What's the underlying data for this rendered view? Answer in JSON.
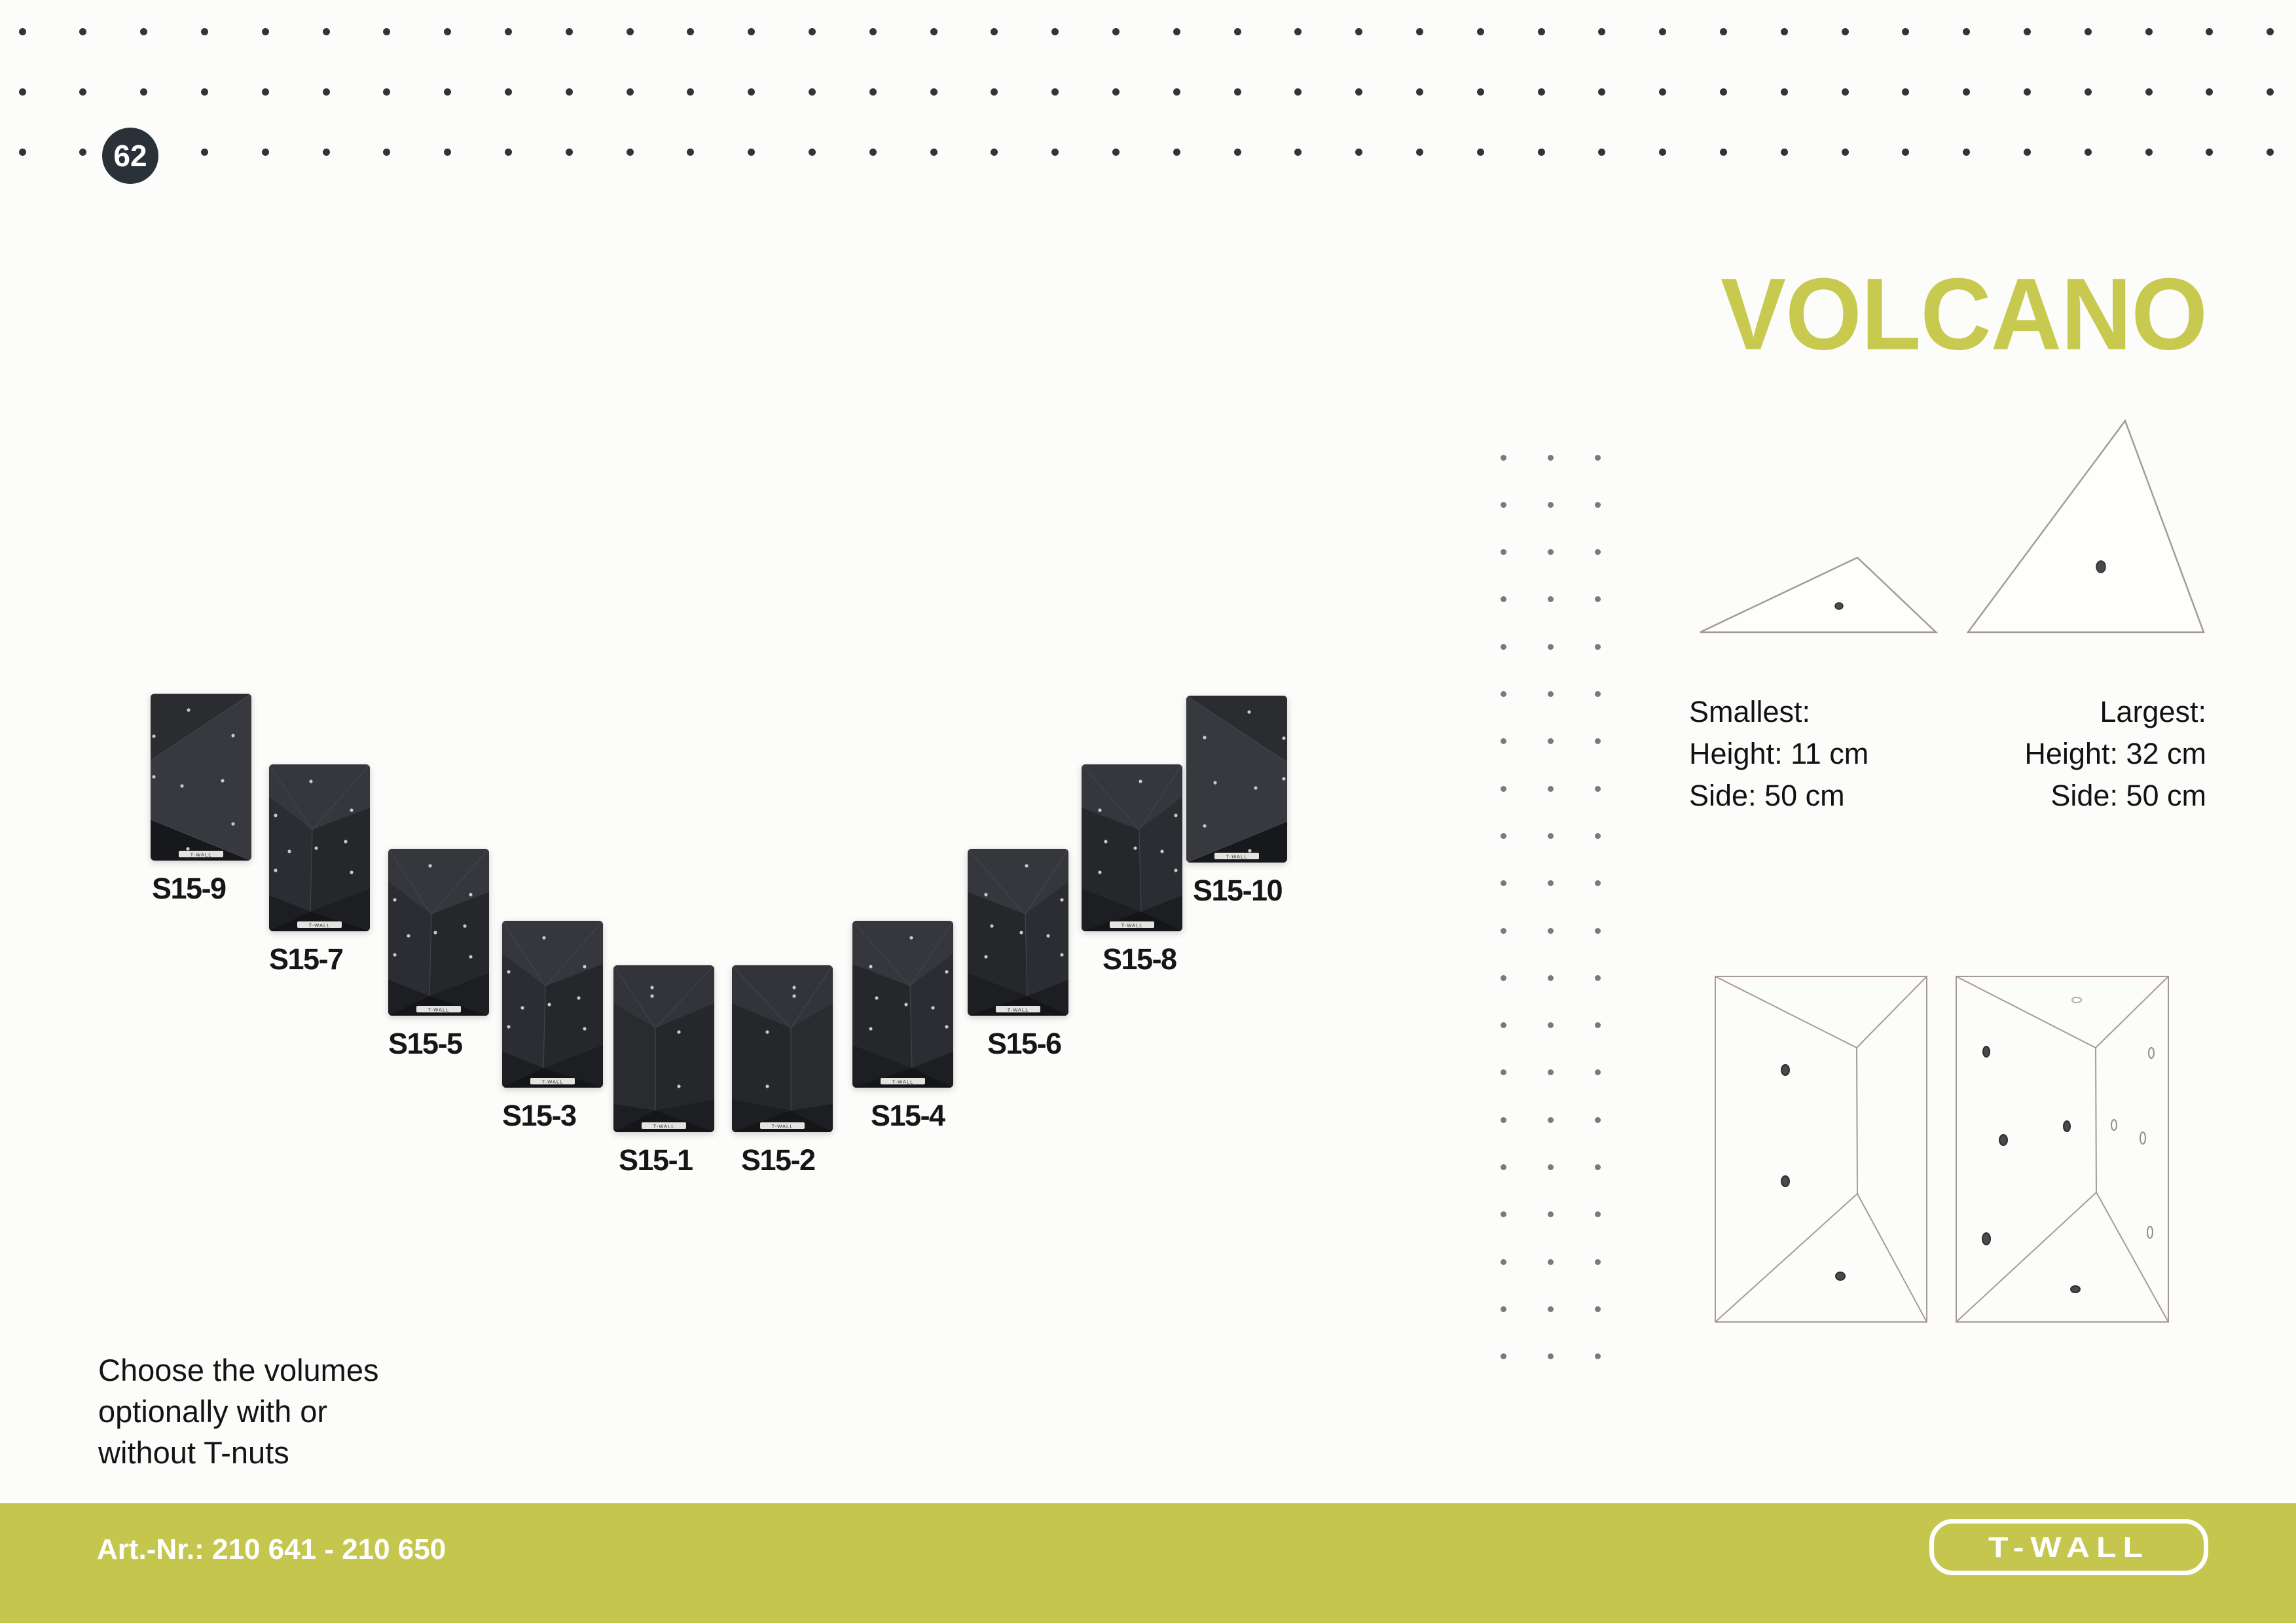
{
  "page": {
    "number": "62",
    "title": "VOLCANO"
  },
  "colors": {
    "accent_bar": "#c5c64d",
    "title_accent": "#c8c94f",
    "ink": "#161616",
    "badge_bg": "#2b3138",
    "top_dot": "#2f353a",
    "side_dot": "#7a7a7e",
    "sketch_line": "#a59b93",
    "volume_dark": "#26272b"
  },
  "specs": {
    "smallest": {
      "label": "Smallest:",
      "height": "Height: 11 cm",
      "side": "Side: 50 cm"
    },
    "largest": {
      "label": "Largest:",
      "height": "Height: 32 cm",
      "side": "Side: 50 cm"
    }
  },
  "volumes": [
    {
      "label": "S15-9"
    },
    {
      "label": "S15-7"
    },
    {
      "label": "S15-5"
    },
    {
      "label": "S15-3"
    },
    {
      "label": "S15-1"
    },
    {
      "label": "S15-2"
    },
    {
      "label": "S15-4"
    },
    {
      "label": "S15-6"
    },
    {
      "label": "S15-8"
    },
    {
      "label": "S15-10"
    }
  ],
  "volume_micro_label": "T-WALL",
  "note": {
    "lines": [
      "Choose the volumes",
      "optionally with or",
      "without T-nuts"
    ]
  },
  "footer": {
    "art_nr": "Art.-Nr.: 210 641 - 210 650",
    "brand": "T-WALL"
  }
}
